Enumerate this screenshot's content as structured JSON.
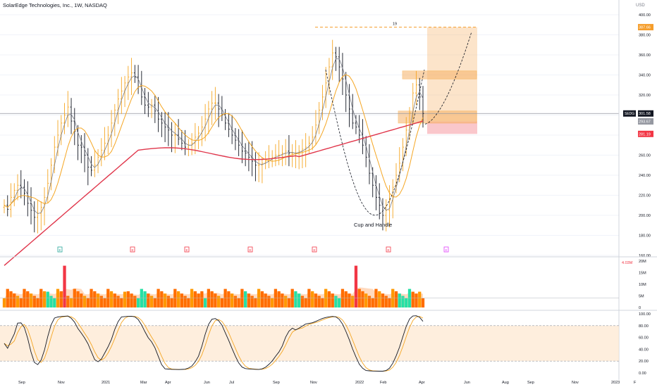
{
  "chart_title": "SolarEdge Technologies, Inc., 1W, NASDAQ",
  "currency": "USD",
  "symbol_tag": "SEDG",
  "pattern_label": "Cup and Handle",
  "target_top_label": "19",
  "colors": {
    "bull_bar": "#f5a623",
    "bear_bar": "#131722",
    "ma_fast": "#787b86",
    "ma_mid": "#f5a623",
    "ma_slow": "#e0364b",
    "target_zone": "#f7b267",
    "stop_zone": "#f7a1a8",
    "vol_up": "#26e0a5",
    "vol_down": "#ff6d00",
    "vol_spike": "#f23645",
    "stoch_k": "#131722",
    "stoch_d": "#f5a623",
    "stoch_band": "#fde7cf"
  },
  "chart_data": [
    {
      "type": "line",
      "name": "price-panel",
      "ylim": [
        160,
        405
      ],
      "y_ticks": [
        "400.00",
        "380.00",
        "360.00",
        "340.00",
        "320.00",
        "300.00",
        "280.00",
        "260.00",
        "240.00",
        "220.00",
        "200.00",
        "180.00",
        "160.00"
      ],
      "x_ticks": [
        "Sep",
        "Nov",
        "2021",
        "Mar",
        "Apr",
        "Jun",
        "Jul",
        "Sep",
        "Nov",
        "2022",
        "Feb",
        "Apr",
        "Jun",
        "Aug",
        "Sep",
        "Nov",
        "2023",
        "F"
      ],
      "price_labels": {
        "target": "387.66",
        "last": "301.58",
        "entry": "293.67",
        "stop": "281.19"
      },
      "close": [
        210,
        206,
        218,
        225,
        230,
        228,
        222,
        212,
        205,
        198,
        202,
        208,
        218,
        232,
        250,
        268,
        280,
        292,
        300,
        308,
        294,
        284,
        270,
        268,
        260,
        248,
        245,
        250,
        258,
        265,
        272,
        280,
        292,
        305,
        316,
        324,
        332,
        338,
        342,
        338,
        328,
        318,
        310,
        308,
        310,
        304,
        296,
        292,
        288,
        285,
        280,
        280,
        276,
        272,
        268,
        270,
        272,
        278,
        282,
        288,
        296,
        306,
        312,
        312,
        306,
        300,
        292,
        286,
        280,
        275,
        270,
        264,
        262,
        258,
        254,
        250,
        250,
        252,
        254,
        256,
        258,
        260,
        260,
        262,
        264,
        262,
        262,
        262,
        264,
        266,
        268,
        272,
        278,
        290,
        305,
        318,
        332,
        348,
        362,
        358,
        348,
        336,
        320,
        306,
        292,
        288,
        280,
        270,
        258,
        242,
        230,
        218,
        210,
        200,
        205,
        215,
        228,
        240,
        252,
        268,
        285,
        302,
        322,
        330,
        318,
        301.58
      ],
      "ma_fast_mid_slow_note": "three moving averages drawn",
      "volume_ylim": [
        0,
        22
      ],
      "volume_ticks": [
        "20M",
        "15M",
        "10M",
        "5M",
        "0"
      ],
      "volume_marker": "4.03M",
      "stoch_ylim": [
        0,
        100
      ],
      "stoch_ticks": [
        "100.00",
        "80.00",
        "60.00",
        "40.00",
        "20.00",
        "0.00"
      ]
    }
  ]
}
